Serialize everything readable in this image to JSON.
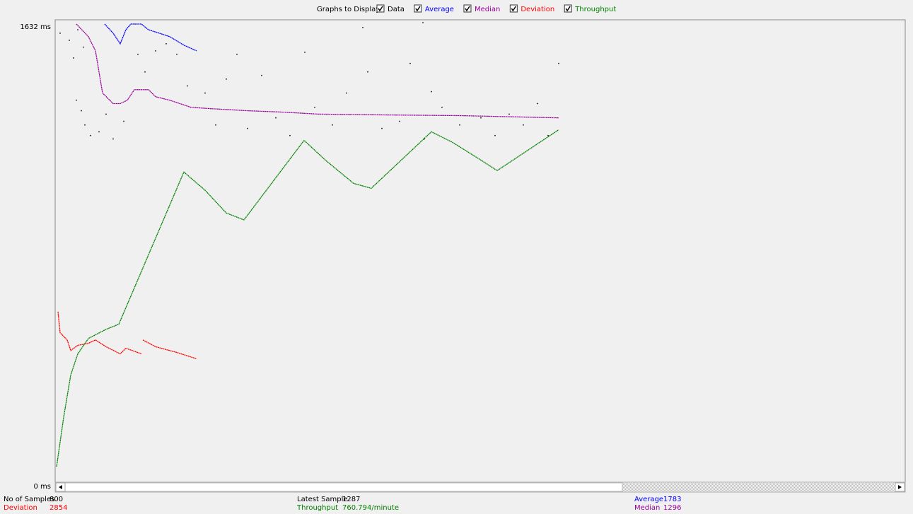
{
  "header": {
    "title": "Graphs to Display"
  },
  "chart_data": {
    "type": "line",
    "xlim": [
      0,
      1202
    ],
    "ylim": [
      0,
      1632
    ],
    "yticks": [
      {
        "value": 1632,
        "label": "1632 ms"
      },
      {
        "value": 0,
        "label": "0 ms"
      }
    ],
    "series": [
      {
        "name": "Data",
        "color": "#000000",
        "type": "scatter",
        "x": [
          7,
          20,
          26,
          32,
          40,
          30,
          37,
          42,
          50,
          62,
          72,
          82,
          97,
          117,
          127,
          142,
          157,
          172,
          187,
          212,
          227,
          242,
          257,
          272,
          292,
          312,
          332,
          353,
          367,
          392,
          412,
          442,
          462,
          487,
          502,
          522,
          532,
          547,
          572,
          602,
          622,
          642,
          662,
          682,
          697,
          712,
          435,
          520
        ],
        "values": [
          1590,
          1565,
          1503,
          1602,
          1541,
          1355,
          1318,
          1268,
          1231,
          1244,
          1306,
          1219,
          1281,
          1516,
          1454,
          1528,
          1553,
          1516,
          1405,
          1380,
          1268,
          1429,
          1516,
          1256,
          1442,
          1293,
          1231,
          1523,
          1330,
          1268,
          1380,
          1454,
          1256,
          1281,
          1484,
          1219,
          1385,
          1330,
          1268,
          1293,
          1231,
          1306,
          1268,
          1343,
          1231,
          1484,
          1610,
          1627
        ]
      },
      {
        "name": "Average",
        "color": "#0000ff",
        "type": "line",
        "x": [
          70,
          82,
          92,
          100,
          107,
          122,
          132,
          147,
          162,
          182,
          200
        ],
        "values": [
          1622,
          1590,
          1553,
          1602,
          1622,
          1622,
          1602,
          1590,
          1578,
          1548,
          1528
        ]
      },
      {
        "name": "Median",
        "color": "#990099",
        "type": "line",
        "x": [
          30,
          47,
          57,
          62,
          67,
          82,
          92,
          102,
          112,
          132,
          142,
          162,
          192,
          222,
          272,
          322,
          372,
          472,
          572,
          712
        ],
        "values": [
          1622,
          1578,
          1528,
          1454,
          1380,
          1343,
          1343,
          1355,
          1392,
          1392,
          1367,
          1355,
          1330,
          1325,
          1318,
          1313,
          1306,
          1303,
          1301,
          1293
        ]
      },
      {
        "name": "Deviation",
        "color": "#ff0000",
        "type": "line",
        "x": [
          4,
          7,
          17,
          22,
          32,
          47,
          57,
          72,
          92,
          100,
          122,
          123,
          124,
          142,
          172,
          200
        ],
        "values": [
          613,
          539,
          514,
          477,
          495,
          502,
          514,
          490,
          465,
          485,
          465,
          null,
          514,
          490,
          470,
          448
        ]
      },
      {
        "name": "Throughput",
        "color": "#008000",
        "type": "line",
        "x": [
          2,
          12,
          22,
          32,
          47,
          72,
          90,
          182,
          212,
          242,
          267,
          352,
          382,
          422,
          447,
          532,
          562,
          602,
          625,
          712
        ],
        "values": [
          69,
          242,
          391,
          465,
          519,
          551,
          569,
          1103,
          1039,
          959,
          935,
          1214,
          1145,
          1063,
          1046,
          1244,
          1207,
          1145,
          1108,
          1251
        ]
      }
    ]
  },
  "footer": {
    "samples": {
      "label": "No of Samples",
      "value": 800
    },
    "deviation": {
      "label": "Deviation",
      "value": 2854
    },
    "latest": {
      "label": "Latest Sample",
      "value": 1287
    },
    "throughput": {
      "label": "Throughput",
      "value": "760.794/minute"
    },
    "average": {
      "label": "Average",
      "value": 1783
    },
    "median": {
      "label": "Median",
      "value": 1296
    }
  }
}
